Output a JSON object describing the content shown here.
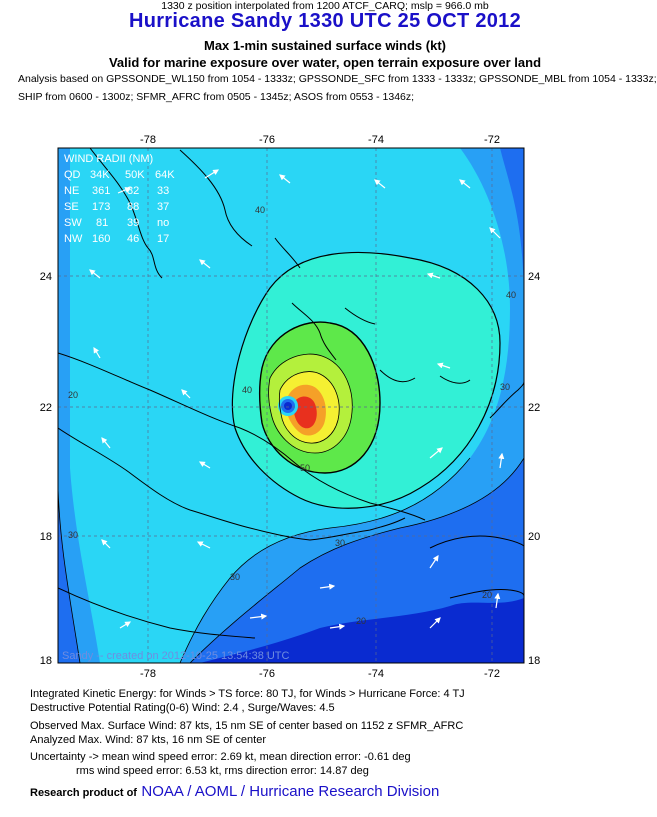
{
  "header": {
    "title": "Hurricane Sandy 1330 UTC 25 OCT 2012",
    "subtitle1": "Max 1-min sustained surface winds (kt)",
    "subtitle2": "Valid for marine exposure over water, open terrain exposure over land",
    "analysis_line1": "Analysis based on GPSSONDE_WL150 from 1054 - 1333z; GPSSONDE_SFC from 1333 - 1333z; GPSSONDE_MBL from 1054 - 1333z;",
    "analysis_line2": "SHIP from 0600 - 1300z; SFMR_AFRC from 0505 - 1345z; ASOS from 0553 - 1346z;",
    "position_line": "1330 z position interpolated from 1200 ATCF_CARQ; mslp = 966.0 mb"
  },
  "map": {
    "lon_ticks": [
      "-78",
      "-76",
      "-74",
      "-72"
    ],
    "lat_ticks": [
      "24",
      "22",
      "20",
      "18"
    ],
    "contour_labels": [
      "20",
      "30",
      "40",
      "50",
      "20",
      "30",
      "40",
      "40",
      "30",
      "30",
      "20"
    ],
    "storm_center": {
      "lon": -75.8,
      "lat": 22.0
    },
    "wind_radii": {
      "title": "WIND RADII (NM)",
      "header": [
        "QD",
        "34K",
        "50K",
        "64K"
      ],
      "rows": [
        [
          "NE",
          "361",
          "82",
          "33"
        ],
        [
          "SE",
          "173",
          "88",
          "37"
        ],
        [
          "SW",
          "81",
          "39",
          "no"
        ],
        [
          "NW",
          "160",
          "46",
          "17"
        ]
      ]
    },
    "created_text": "Sandy -- created on 2012-10-25 13:54:38 UTC",
    "colors": {
      "deep_blue": "#0a2bd0",
      "blue": "#1e6ef0",
      "sky": "#28a0f5",
      "cyan": "#2ad6f5",
      "aqua": "#32f0d6",
      "green": "#5ee84a",
      "lime": "#b4f03c",
      "yellow": "#f5f032",
      "orange": "#f5a028",
      "red": "#e8301e"
    }
  },
  "footer": {
    "ike": "Integrated Kinetic Energy: for Winds > TS force: 80 TJ, for Winds > Hurricane Force: 4 TJ",
    "dpr": "Destructive Potential Rating(0-6)   Wind: 2.4 , Surge/Waves: 4.5",
    "observed": "Observed Max. Surface Wind: 87 kts, 15 nm SE of center based on 1152 z SFMR_AFRC",
    "analyzed": "Analyzed Max. Wind: 87 kts, 16 nm  SE of center",
    "uncertainty": "Uncertainty -> mean wind speed error: 2.69 kt, mean direction error:  -0.61 deg",
    "rms": "rms wind speed error: 6.53 kt, rms direction error: 14.87 deg",
    "credit_lead": "Research product of",
    "credit_org": "NOAA / AOML / Hurricane Research Division"
  }
}
